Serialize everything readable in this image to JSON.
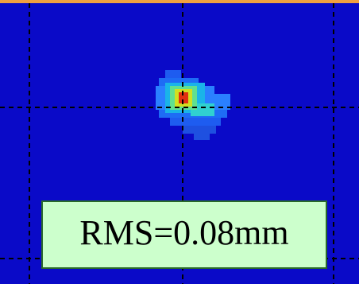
{
  "label": "RMS=0.08mm"
}
